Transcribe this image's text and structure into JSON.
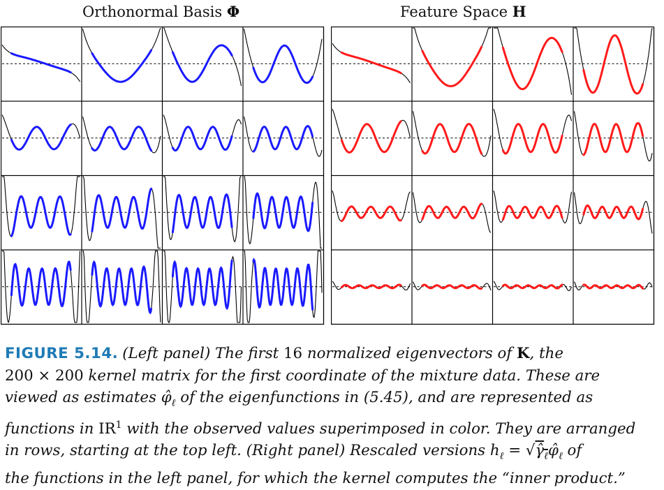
{
  "panels": {
    "left_title": "Orthonormal Basis",
    "left_symbol": "Φ",
    "right_title": "Feature Space",
    "right_symbol": "H",
    "left_color": "#1a1aff",
    "right_color": "#ff1a1a",
    "grid_rows": 4,
    "grid_cols": 4,
    "cell_count": 16
  },
  "caption": {
    "label": "FIGURE 5.14.",
    "lines": [
      "(Left panel) The first 16 normalized eigenvectors of K, the",
      "200 × 200 kernel matrix for the first coordinate of the mixture data. These are",
      "viewed as estimates φ̂ℓ of the eigenfunctions in (5.45), and are represented as",
      "functions in ℝ1 with the observed values superimposed in color. They are arranged",
      "in rows, starting at the top left. (Right panel) Rescaled versions hℓ = √γ̂ℓ φ̂ℓ of",
      "the functions in the left panel, for which the kernel computes the “inner product.”"
    ]
  }
}
